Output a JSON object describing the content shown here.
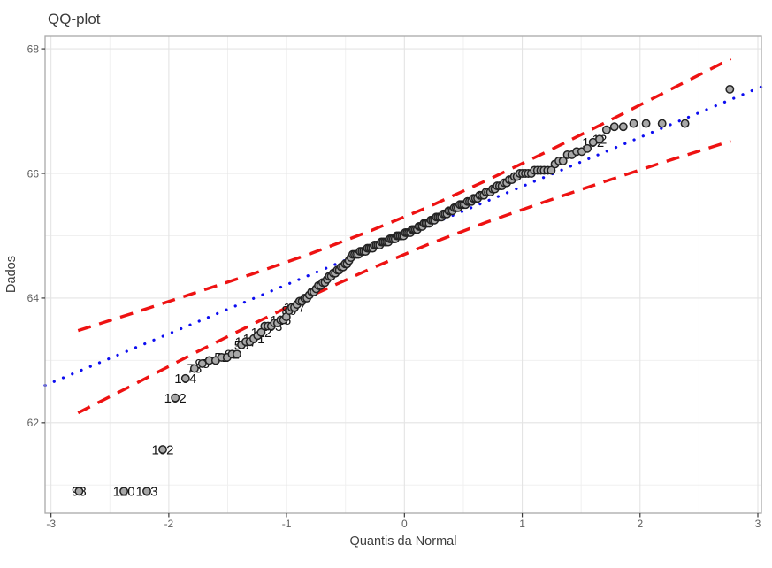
{
  "chart_data": {
    "type": "scatter",
    "title": "QQ-plot",
    "xlabel": "Quantis da Normal",
    "ylabel": "Dados",
    "xlim": [
      -3.05,
      3.03
    ],
    "ylim": [
      60.55,
      68.2
    ],
    "xticks": [
      -3,
      -2,
      -1,
      0,
      1,
      2,
      3
    ],
    "yticks": [
      62,
      64,
      66,
      68
    ],
    "xminor": [
      -2.5,
      -1.5,
      -0.5,
      0.5,
      1.5,
      2.5
    ],
    "yminor": [
      61,
      63,
      65,
      67
    ],
    "grid": true,
    "legend": "none",
    "marker": {
      "shape": "circle",
      "radius": 4.2,
      "fill": "#a8a8a8",
      "stroke": "#222222",
      "stroke_width": 1.5
    },
    "values_with_counts": [
      [
        60.9,
        3
      ],
      [
        61.57,
        1
      ],
      [
        62.4,
        1
      ],
      [
        62.71,
        1
      ],
      [
        62.87,
        1
      ],
      [
        62.95,
        1
      ],
      [
        63,
        2
      ],
      [
        63.05,
        2
      ],
      [
        63.1,
        2
      ],
      [
        63.25,
        1
      ],
      [
        63.3,
        2
      ],
      [
        63.35,
        1
      ],
      [
        63.4,
        1
      ],
      [
        63.45,
        1
      ],
      [
        63.55,
        3
      ],
      [
        63.6,
        2
      ],
      [
        63.65,
        2
      ],
      [
        63.7,
        1
      ],
      [
        63.8,
        1
      ],
      [
        63.85,
        2
      ],
      [
        63.9,
        1
      ],
      [
        63.95,
        2
      ],
      [
        64,
        2
      ],
      [
        64.05,
        1
      ],
      [
        64.1,
        2
      ],
      [
        64.15,
        1
      ],
      [
        64.2,
        2
      ],
      [
        64.25,
        2
      ],
      [
        64.3,
        1
      ],
      [
        64.35,
        2
      ],
      [
        64.4,
        2
      ],
      [
        64.45,
        2
      ],
      [
        64.5,
        2
      ],
      [
        64.55,
        2
      ],
      [
        64.6,
        1
      ],
      [
        64.65,
        1
      ],
      [
        64.7,
        4
      ],
      [
        64.75,
        4
      ],
      [
        64.8,
        4
      ],
      [
        64.85,
        4
      ],
      [
        64.9,
        5
      ],
      [
        64.95,
        4
      ],
      [
        65,
        5
      ],
      [
        65.05,
        4
      ],
      [
        65.1,
        4
      ],
      [
        65.15,
        3
      ],
      [
        65.2,
        4
      ],
      [
        65.25,
        3
      ],
      [
        65.3,
        4
      ],
      [
        65.35,
        3
      ],
      [
        65.4,
        3
      ],
      [
        65.45,
        3
      ],
      [
        65.5,
        4
      ],
      [
        65.55,
        3
      ],
      [
        65.6,
        3
      ],
      [
        65.65,
        3
      ],
      [
        65.7,
        3
      ],
      [
        65.75,
        2
      ],
      [
        65.8,
        3
      ],
      [
        65.85,
        2
      ],
      [
        65.9,
        2
      ],
      [
        65.95,
        2
      ],
      [
        66,
        5
      ],
      [
        66.05,
        6
      ],
      [
        66.15,
        1
      ],
      [
        66.2,
        2
      ],
      [
        66.3,
        2
      ],
      [
        66.35,
        2
      ],
      [
        66.4,
        1
      ],
      [
        66.5,
        1
      ],
      [
        66.55,
        1
      ],
      [
        66.7,
        1
      ],
      [
        66.75,
        2
      ],
      [
        66.8,
        4
      ],
      [
        67.35,
        1
      ]
    ],
    "n_points": 174,
    "point_labels": [
      {
        "rank": 1,
        "text": "98"
      },
      {
        "rank": 2,
        "text": "120"
      },
      {
        "rank": 3,
        "text": "103"
      },
      {
        "rank": 4,
        "text": "102"
      },
      {
        "rank": 5,
        "text": "102"
      },
      {
        "rank": 6,
        "text": "104"
      },
      {
        "rank": 7,
        "text": "78"
      },
      {
        "rank": 8,
        "text": "95"
      },
      {
        "rank": 11,
        "text": "51"
      },
      {
        "rank": 13,
        "text": "91"
      },
      {
        "rank": 15,
        "text": "58"
      },
      {
        "rank": 16,
        "text": "107"
      },
      {
        "rank": 18,
        "text": "101"
      },
      {
        "rank": 20,
        "text": "112"
      },
      {
        "rank": 23,
        "text": "163"
      },
      {
        "rank": 26,
        "text": "115"
      },
      {
        "rank": 29,
        "text": "86"
      },
      {
        "rank": 31,
        "text": "147"
      },
      {
        "rank": 165,
        "text": "102"
      },
      {
        "rank": 166,
        "text": "12"
      }
    ],
    "ref_line": {
      "style": "dotted",
      "color": "#0d0df0",
      "x": [
        -3.05,
        3.03
      ],
      "y": [
        62.6,
        67.39
      ]
    },
    "band": {
      "style": "dashed",
      "color": "#ee1212",
      "q": [
        -2.77,
        -2.3,
        -1.8,
        -1.3,
        -0.8,
        -0.3,
        0.2,
        0.7,
        1.2,
        1.7,
        2.2,
        2.77
      ],
      "upper": [
        63.48,
        63.76,
        64.07,
        64.38,
        64.71,
        65.07,
        65.46,
        65.89,
        66.34,
        66.81,
        67.29,
        67.84
      ],
      "lower": [
        62.16,
        62.61,
        63.1,
        63.57,
        64.03,
        64.46,
        64.86,
        65.22,
        65.55,
        65.87,
        66.18,
        66.52
      ]
    },
    "style": {
      "panel_bg": "#ffffff",
      "grid_major": "#e4e4e4",
      "grid_minor": "#f0f0f0",
      "panel_border": "#a9a9a9",
      "tick_mark": "#3a3a3a",
      "title_color": "#3b3b3b",
      "tick_label_color": "#606060"
    }
  }
}
